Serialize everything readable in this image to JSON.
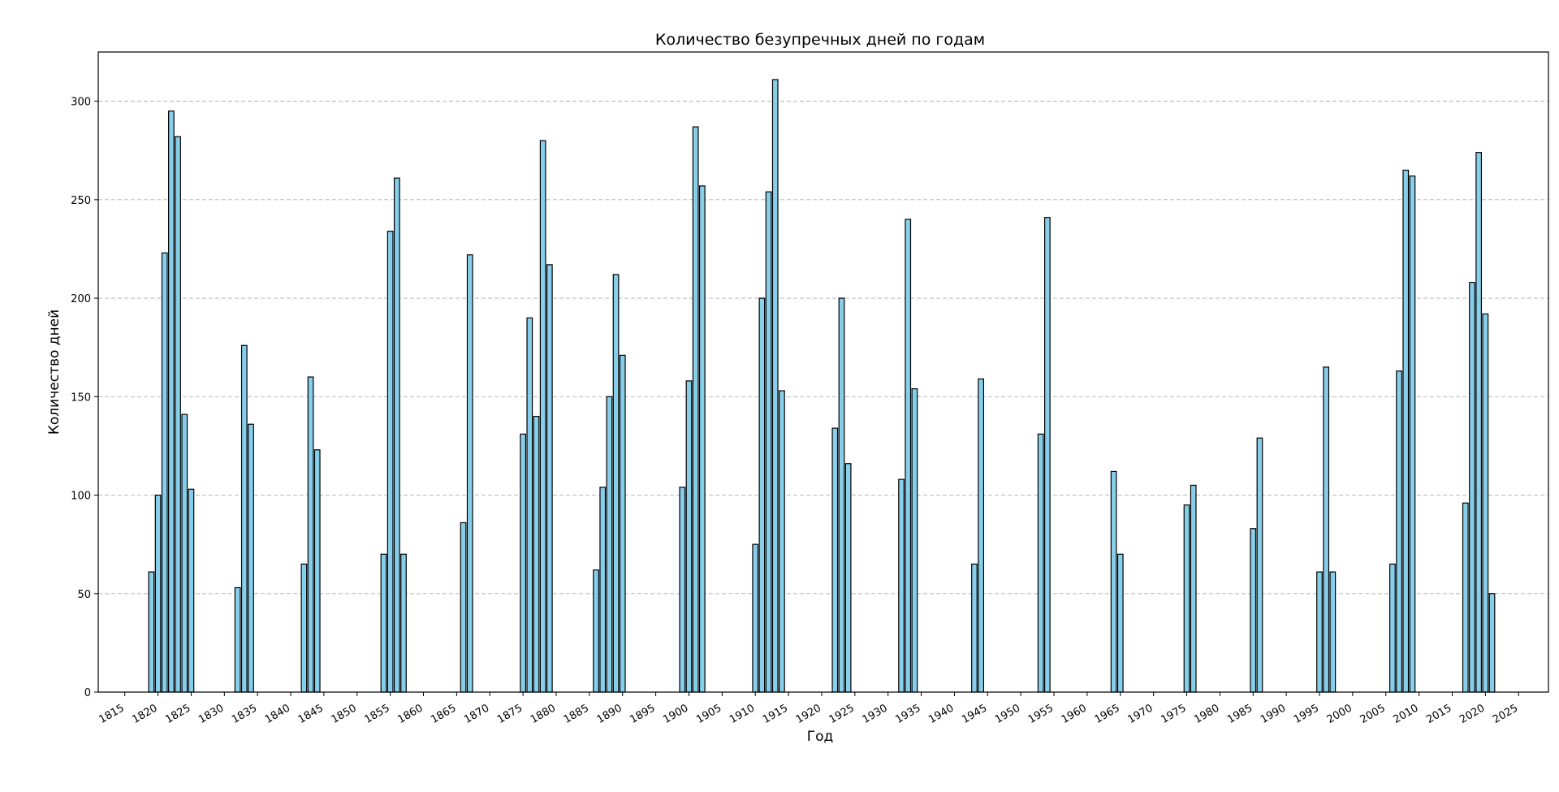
{
  "chart_data": {
    "type": "bar",
    "title": "Количество безупречных дней по годам",
    "xlabel": "Год",
    "ylabel": "Количество дней",
    "xlim": [
      1811,
      2029.5
    ],
    "ylim": [
      0,
      325
    ],
    "x_ticks": [
      1815,
      1820,
      1825,
      1830,
      1835,
      1840,
      1845,
      1850,
      1855,
      1860,
      1865,
      1870,
      1875,
      1880,
      1885,
      1890,
      1895,
      1900,
      1905,
      1910,
      1915,
      1920,
      1925,
      1930,
      1935,
      1940,
      1945,
      1950,
      1955,
      1960,
      1965,
      1970,
      1975,
      1980,
      1985,
      1990,
      1995,
      2000,
      2005,
      2010,
      2015,
      2020,
      2025
    ],
    "y_ticks": [
      0,
      50,
      100,
      150,
      200,
      250,
      300
    ],
    "grid": "y-dashed",
    "bar_color": "#87ceeb",
    "edge_color": "#000000",
    "points": [
      {
        "x": 1819,
        "y": 61
      },
      {
        "x": 1820,
        "y": 100
      },
      {
        "x": 1821,
        "y": 223
      },
      {
        "x": 1822,
        "y": 295
      },
      {
        "x": 1823,
        "y": 282
      },
      {
        "x": 1824,
        "y": 141
      },
      {
        "x": 1825,
        "y": 103
      },
      {
        "x": 1832,
        "y": 53
      },
      {
        "x": 1833,
        "y": 176
      },
      {
        "x": 1834,
        "y": 136
      },
      {
        "x": 1842,
        "y": 65
      },
      {
        "x": 1843,
        "y": 160
      },
      {
        "x": 1844,
        "y": 123
      },
      {
        "x": 1854,
        "y": 70
      },
      {
        "x": 1855,
        "y": 234
      },
      {
        "x": 1856,
        "y": 261
      },
      {
        "x": 1857,
        "y": 70
      },
      {
        "x": 1866,
        "y": 86
      },
      {
        "x": 1867,
        "y": 222
      },
      {
        "x": 1875,
        "y": 131
      },
      {
        "x": 1876,
        "y": 190
      },
      {
        "x": 1877,
        "y": 140
      },
      {
        "x": 1878,
        "y": 280
      },
      {
        "x": 1879,
        "y": 217
      },
      {
        "x": 1886,
        "y": 62
      },
      {
        "x": 1887,
        "y": 104
      },
      {
        "x": 1888,
        "y": 150
      },
      {
        "x": 1889,
        "y": 212
      },
      {
        "x": 1890,
        "y": 171
      },
      {
        "x": 1899,
        "y": 104
      },
      {
        "x": 1900,
        "y": 158
      },
      {
        "x": 1901,
        "y": 287
      },
      {
        "x": 1902,
        "y": 257
      },
      {
        "x": 1910,
        "y": 75
      },
      {
        "x": 1911,
        "y": 200
      },
      {
        "x": 1912,
        "y": 254
      },
      {
        "x": 1913,
        "y": 311
      },
      {
        "x": 1914,
        "y": 153
      },
      {
        "x": 1922,
        "y": 134
      },
      {
        "x": 1923,
        "y": 200
      },
      {
        "x": 1924,
        "y": 116
      },
      {
        "x": 1932,
        "y": 108
      },
      {
        "x": 1933,
        "y": 240
      },
      {
        "x": 1934,
        "y": 154
      },
      {
        "x": 1943,
        "y": 65
      },
      {
        "x": 1944,
        "y": 159
      },
      {
        "x": 1953,
        "y": 131
      },
      {
        "x": 1954,
        "y": 241
      },
      {
        "x": 1964,
        "y": 112
      },
      {
        "x": 1965,
        "y": 70
      },
      {
        "x": 1975,
        "y": 95
      },
      {
        "x": 1976,
        "y": 105
      },
      {
        "x": 1985,
        "y": 83
      },
      {
        "x": 1986,
        "y": 129
      },
      {
        "x": 1995,
        "y": 61
      },
      {
        "x": 1996,
        "y": 165
      },
      {
        "x": 1997,
        "y": 61
      },
      {
        "x": 2006,
        "y": 65
      },
      {
        "x": 2007,
        "y": 163
      },
      {
        "x": 2008,
        "y": 265
      },
      {
        "x": 2009,
        "y": 262
      },
      {
        "x": 2017,
        "y": 96
      },
      {
        "x": 2018,
        "y": 208
      },
      {
        "x": 2019,
        "y": 274
      },
      {
        "x": 2020,
        "y": 192
      },
      {
        "x": 2021,
        "y": 50
      }
    ]
  }
}
